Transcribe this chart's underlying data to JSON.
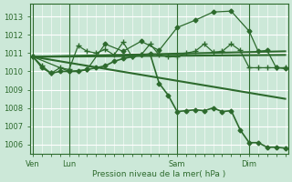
{
  "background_color": "#cce8d8",
  "grid_color": "#ffffff",
  "line_color": "#2d6a2d",
  "axis_label": "Pression niveau de la mer( hPa )",
  "x_ticks_labels": [
    "Ven",
    "Lun",
    "Sam",
    "Dim"
  ],
  "x_ticks_pos": [
    0,
    24,
    96,
    144
  ],
  "x_minor_ticks": 6,
  "ylim": [
    1005.5,
    1013.7
  ],
  "xlim": [
    -2,
    170
  ],
  "yticks": [
    1006,
    1007,
    1008,
    1009,
    1010,
    1011,
    1012,
    1013
  ],
  "vlines_x": [
    0,
    24,
    96,
    144
  ],
  "series": [
    {
      "x": [
        0,
        6,
        12,
        18,
        24,
        30,
        36,
        42,
        48,
        54,
        60,
        66,
        72,
        78,
        84,
        90,
        96,
        102,
        108,
        114,
        120,
        126,
        132,
        138,
        144,
        150,
        156,
        162,
        168
      ],
      "y": [
        1010.8,
        1010.3,
        1009.9,
        1010.2,
        1010.1,
        1011.4,
        1011.1,
        1011.0,
        1011.2,
        1010.9,
        1011.6,
        1010.8,
        1010.9,
        1011.5,
        1010.9,
        1010.8,
        1010.8,
        1011.0,
        1011.1,
        1011.5,
        1011.05,
        1011.1,
        1011.5,
        1011.15,
        1010.2,
        1010.2,
        1010.2,
        1010.2,
        1010.2
      ],
      "marker": "+",
      "lw": 0.9,
      "ms": 4
    },
    {
      "x": [
        0,
        24,
        36,
        48,
        60,
        72,
        84,
        96,
        108,
        120,
        132,
        144,
        150,
        156,
        162,
        168
      ],
      "y": [
        1010.8,
        1010.0,
        1010.1,
        1011.5,
        1011.1,
        1011.65,
        1011.15,
        1012.4,
        1012.8,
        1013.25,
        1013.3,
        1012.2,
        1011.1,
        1011.15,
        1010.2,
        1010.15
      ],
      "marker": "D",
      "lw": 0.9,
      "ms": 2.5
    },
    {
      "x": [
        0,
        168
      ],
      "y": [
        1010.8,
        1010.9
      ],
      "marker": null,
      "lw": 1.5,
      "ms": 0
    },
    {
      "x": [
        0,
        168
      ],
      "y": [
        1010.8,
        1011.1
      ],
      "marker": null,
      "lw": 1.5,
      "ms": 0
    },
    {
      "x": [
        0,
        168
      ],
      "y": [
        1010.8,
        1008.5
      ],
      "marker": null,
      "lw": 1.5,
      "ms": 0
    },
    {
      "x": [
        0,
        6,
        12,
        18,
        24,
        30,
        36,
        42,
        48,
        54,
        60,
        66,
        72,
        78,
        84,
        90,
        96,
        102,
        108,
        114,
        120,
        126,
        132,
        138,
        144,
        150,
        156,
        162,
        168
      ],
      "y": [
        1010.8,
        1010.2,
        1009.9,
        1010.0,
        1010.0,
        1010.0,
        1010.1,
        1010.2,
        1010.3,
        1010.55,
        1010.7,
        1010.8,
        1010.9,
        1010.95,
        1009.35,
        1008.7,
        1007.8,
        1007.85,
        1007.9,
        1007.85,
        1008.0,
        1007.8,
        1007.85,
        1006.8,
        1006.1,
        1006.1,
        1005.85,
        1005.85,
        1005.8
      ],
      "marker": "D",
      "lw": 1.2,
      "ms": 2.5
    }
  ]
}
